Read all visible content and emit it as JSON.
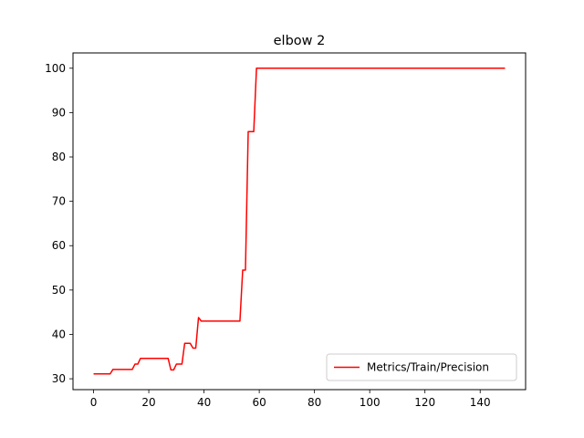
{
  "chart_data": {
    "type": "line",
    "title": "elbow 2",
    "xlabel": "",
    "ylabel": "",
    "xlim": [
      -7.45,
      156.45
    ],
    "ylim": [
      27.55,
      103.45
    ],
    "xticks": [
      0,
      20,
      40,
      60,
      80,
      100,
      120,
      140
    ],
    "yticks": [
      30,
      40,
      50,
      60,
      70,
      80,
      90,
      100
    ],
    "grid": false,
    "legend_position": "lower right",
    "series": [
      {
        "name": "Metrics/Train/Precision",
        "color": "#ff0000",
        "points": [
          [
            0,
            31.1
          ],
          [
            6,
            31.1
          ],
          [
            7,
            32.1
          ],
          [
            14,
            32.1
          ],
          [
            15,
            33.3
          ],
          [
            16,
            33.3
          ],
          [
            17,
            34.6
          ],
          [
            27,
            34.6
          ],
          [
            28,
            32.0
          ],
          [
            29,
            32.0
          ],
          [
            30,
            33.3
          ],
          [
            32,
            33.3
          ],
          [
            33,
            38.0
          ],
          [
            35,
            38.0
          ],
          [
            36,
            36.9
          ],
          [
            37,
            36.9
          ],
          [
            38,
            43.8
          ],
          [
            39,
            43.0
          ],
          [
            53,
            43.0
          ],
          [
            54,
            54.5
          ],
          [
            55,
            54.5
          ],
          [
            56,
            85.7
          ],
          [
            58,
            85.7
          ],
          [
            59,
            100
          ],
          [
            149,
            100
          ]
        ]
      }
    ]
  }
}
